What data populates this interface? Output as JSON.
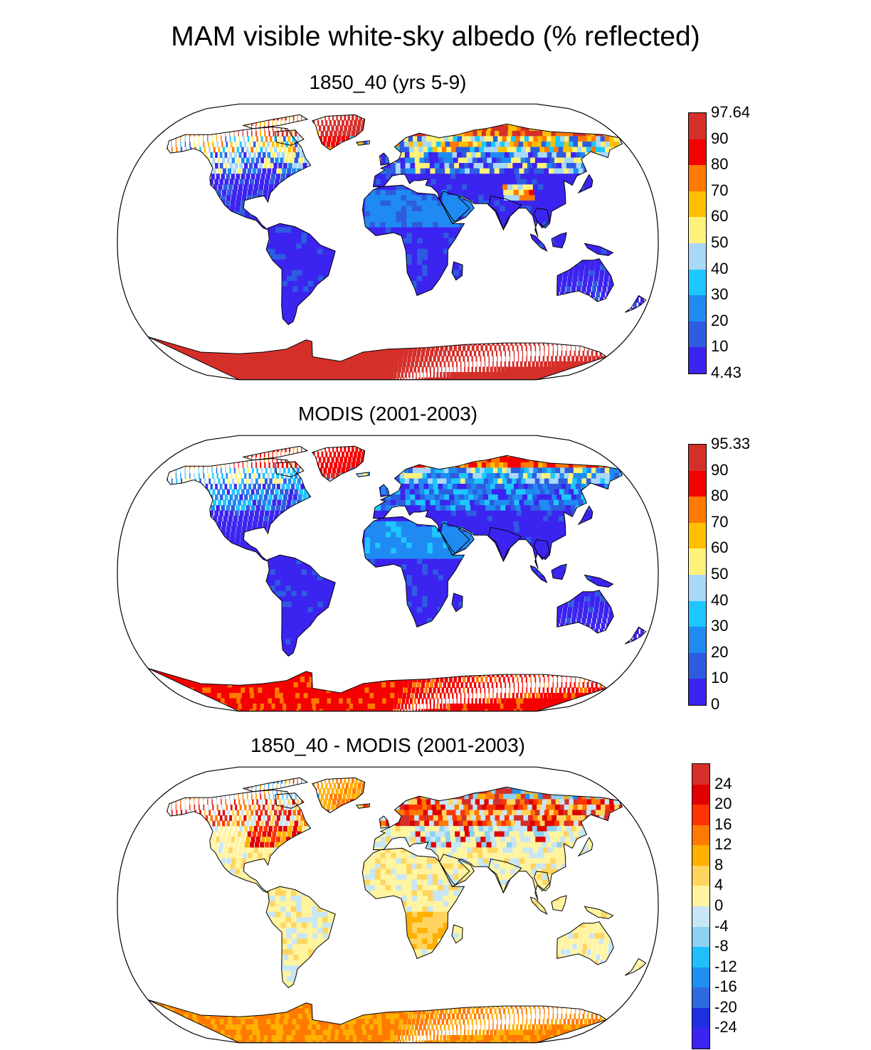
{
  "title": "MAM visible white-sky albedo (% reflected)",
  "panels": [
    {
      "id": "model",
      "title": "1850_40 (yrs 5-9)",
      "colorbar": {
        "labels": [
          "97.64",
          "90",
          "80",
          "70",
          "60",
          "50",
          "40",
          "30",
          "20",
          "10",
          "4.43"
        ],
        "colors": [
          "#d52f2a",
          "#f50000",
          "#ff7a00",
          "#ffc000",
          "#fff27a",
          "#a8d8f5",
          "#1ec7ff",
          "#1f8bf2",
          "#2e5ce0",
          "#3c24f0"
        ]
      }
    },
    {
      "id": "obs",
      "title": "MODIS (2001-2003)",
      "colorbar": {
        "labels": [
          "95.33",
          "90",
          "80",
          "70",
          "60",
          "50",
          "40",
          "30",
          "20",
          "10",
          "0"
        ],
        "colors": [
          "#d52f2a",
          "#f50000",
          "#ff7a00",
          "#ffc000",
          "#fff27a",
          "#a8d8f5",
          "#1ec7ff",
          "#1f8bf2",
          "#2e5ce0",
          "#3c24f0"
        ]
      }
    },
    {
      "id": "diff",
      "title": "1850_40 - MODIS (2001-2003)",
      "colorbar": {
        "labels": [
          "24",
          "20",
          "16",
          "12",
          "8",
          "4",
          "0",
          "-4",
          "-8",
          "-12",
          "-16",
          "-20",
          "-24"
        ],
        "colors": [
          "#d52f2a",
          "#e00000",
          "#ff3300",
          "#ff7a00",
          "#ffb000",
          "#ffd560",
          "#fff4a0",
          "#c8e6f5",
          "#8ed0f2",
          "#20c0ff",
          "#1e90f0",
          "#2f6ae0",
          "#1f2fe0",
          "#3c24f0"
        ]
      }
    }
  ]
}
